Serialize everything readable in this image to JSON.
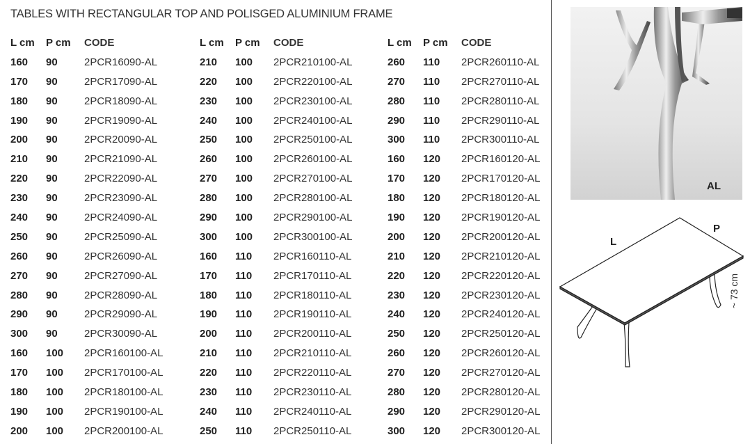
{
  "title": "TABLES WITH RECTANGULAR TOP AND POLISGED ALUMINIUM FRAME",
  "headers": {
    "l": "L cm",
    "p": "P cm",
    "code": "CODE"
  },
  "columns": [
    [
      [
        "160",
        "90",
        "2PCR16090-AL"
      ],
      [
        "170",
        "90",
        "2PCR17090-AL"
      ],
      [
        "180",
        "90",
        "2PCR18090-AL"
      ],
      [
        "190",
        "90",
        "2PCR19090-AL"
      ],
      [
        "200",
        "90",
        "2PCR20090-AL"
      ],
      [
        "210",
        "90",
        "2PCR21090-AL"
      ],
      [
        "220",
        "90",
        "2PCR22090-AL"
      ],
      [
        "230",
        "90",
        "2PCR23090-AL"
      ],
      [
        "240",
        "90",
        "2PCR24090-AL"
      ],
      [
        "250",
        "90",
        "2PCR25090-AL"
      ],
      [
        "260",
        "90",
        "2PCR26090-AL"
      ],
      [
        "270",
        "90",
        "2PCR27090-AL"
      ],
      [
        "280",
        "90",
        "2PCR28090-AL"
      ],
      [
        "290",
        "90",
        "2PCR29090-AL"
      ],
      [
        "300",
        "90",
        "2PCR30090-AL"
      ],
      [
        "160",
        "100",
        "2PCR160100-AL"
      ],
      [
        "170",
        "100",
        "2PCR170100-AL"
      ],
      [
        "180",
        "100",
        "2PCR180100-AL"
      ],
      [
        "190",
        "100",
        "2PCR190100-AL"
      ],
      [
        "200",
        "100",
        "2PCR200100-AL"
      ]
    ],
    [
      [
        "210",
        "100",
        "2PCR210100-AL"
      ],
      [
        "220",
        "100",
        "2PCR220100-AL"
      ],
      [
        "230",
        "100",
        "2PCR230100-AL"
      ],
      [
        "240",
        "100",
        "2PCR240100-AL"
      ],
      [
        "250",
        "100",
        "2PCR250100-AL"
      ],
      [
        "260",
        "100",
        "2PCR260100-AL"
      ],
      [
        "270",
        "100",
        "2PCR270100-AL"
      ],
      [
        "280",
        "100",
        "2PCR280100-AL"
      ],
      [
        "290",
        "100",
        "2PCR290100-AL"
      ],
      [
        "300",
        "100",
        "2PCR300100-AL"
      ],
      [
        "160",
        "110",
        "2PCR160110-AL"
      ],
      [
        "170",
        "110",
        "2PCR170110-AL"
      ],
      [
        "180",
        "110",
        "2PCR180110-AL"
      ],
      [
        "190",
        "110",
        "2PCR190110-AL"
      ],
      [
        "200",
        "110",
        "2PCR200110-AL"
      ],
      [
        "210",
        "110",
        "2PCR210110-AL"
      ],
      [
        "220",
        "110",
        "2PCR220110-AL"
      ],
      [
        "230",
        "110",
        "2PCR230110-AL"
      ],
      [
        "240",
        "110",
        "2PCR240110-AL"
      ],
      [
        "250",
        "110",
        "2PCR250110-AL"
      ]
    ],
    [
      [
        "260",
        "110",
        "2PCR260110-AL"
      ],
      [
        "270",
        "110",
        "2PCR270110-AL"
      ],
      [
        "280",
        "110",
        "2PCR280110-AL"
      ],
      [
        "290",
        "110",
        "2PCR290110-AL"
      ],
      [
        "300",
        "110",
        "2PCR300110-AL"
      ],
      [
        "160",
        "120",
        "2PCR160120-AL"
      ],
      [
        "170",
        "120",
        "2PCR170120-AL"
      ],
      [
        "180",
        "120",
        "2PCR180120-AL"
      ],
      [
        "190",
        "120",
        "2PCR190120-AL"
      ],
      [
        "200",
        "120",
        "2PCR200120-AL"
      ],
      [
        "210",
        "120",
        "2PCR210120-AL"
      ],
      [
        "220",
        "120",
        "2PCR220120-AL"
      ],
      [
        "230",
        "120",
        "2PCR230120-AL"
      ],
      [
        "240",
        "120",
        "2PCR240120-AL"
      ],
      [
        "250",
        "120",
        "2PCR250120-AL"
      ],
      [
        "260",
        "120",
        "2PCR260120-AL"
      ],
      [
        "270",
        "120",
        "2PCR270120-AL"
      ],
      [
        "280",
        "120",
        "2PCR280120-AL"
      ],
      [
        "290",
        "120",
        "2PCR290120-AL"
      ],
      [
        "300",
        "120",
        "2PCR300120-AL"
      ]
    ]
  ],
  "photo": {
    "finish_label": "AL"
  },
  "diagram": {
    "length_label": "L",
    "depth_label": "P",
    "height_label": "~ 73 cm"
  }
}
